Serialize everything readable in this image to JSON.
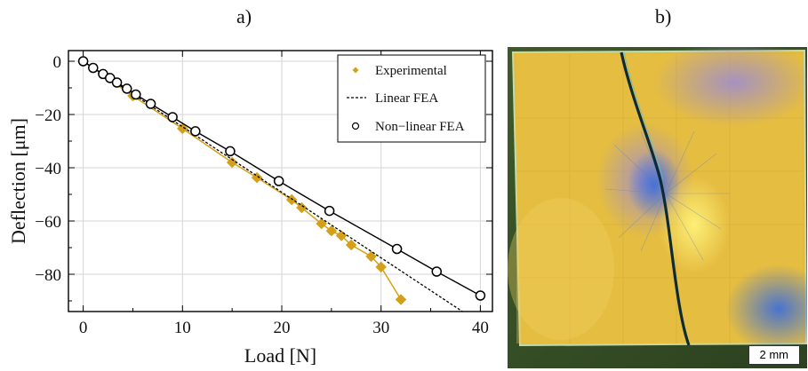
{
  "panel_a_label": "a)",
  "panel_b_label": "b)",
  "scale_bar_label": "2 mm",
  "chart_data": {
    "type": "line",
    "xlabel": "Load [N]",
    "ylabel": "Deflection [μm]",
    "xlim": [
      -1.5,
      41
    ],
    "ylim": [
      -94,
      3
    ],
    "xticks": [
      0,
      10,
      20,
      30,
      40
    ],
    "yticks": [
      0,
      -20,
      -40,
      -60,
      -80
    ],
    "grid": true,
    "legend_position": "top-right",
    "series": [
      {
        "name": "Experimental",
        "style": "diamond-line",
        "color": "#d4a017",
        "points": [
          [
            0,
            0
          ],
          [
            5,
            -13
          ],
          [
            10,
            -25.3
          ],
          [
            15,
            -38
          ],
          [
            17.5,
            -43.7
          ],
          [
            21,
            -52
          ],
          [
            22,
            -55
          ],
          [
            24,
            -61
          ],
          [
            25,
            -63.7
          ],
          [
            26,
            -65.5
          ],
          [
            27,
            -69
          ],
          [
            29,
            -73.3
          ],
          [
            30,
            -77.3
          ],
          [
            32,
            -89.5
          ]
        ]
      },
      {
        "name": "Linear FEA",
        "style": "dashed",
        "color": "#000000",
        "points": [
          [
            0,
            0
          ],
          [
            38.2,
            -94
          ]
        ]
      },
      {
        "name": "Non−linear FEA",
        "style": "circle-line",
        "color": "#000000",
        "points": [
          [
            0,
            0
          ],
          [
            1,
            -2.5
          ],
          [
            2,
            -4.8
          ],
          [
            2.7,
            -6.3
          ],
          [
            3.4,
            -8
          ],
          [
            4.4,
            -10.3
          ],
          [
            5.3,
            -12.5
          ],
          [
            6.8,
            -16
          ],
          [
            9,
            -21
          ],
          [
            11.3,
            -26.3
          ],
          [
            14.8,
            -33.8
          ],
          [
            19.7,
            -45
          ],
          [
            24.8,
            -56.2
          ],
          [
            31.6,
            -70.5
          ],
          [
            35.6,
            -79
          ],
          [
            40,
            -88
          ]
        ]
      }
    ]
  }
}
